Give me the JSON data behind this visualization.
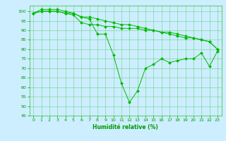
{
  "background_color": "#cceeff",
  "grid_color": "#33bb33",
  "line_color": "#00bb00",
  "marker_color": "#00bb00",
  "xlabel": "Humidité relative (%)",
  "xlabel_color": "#009900",
  "tick_color": "#009900",
  "ylim": [
    45,
    103
  ],
  "xlim": [
    -0.5,
    23.5
  ],
  "yticks": [
    45,
    50,
    55,
    60,
    65,
    70,
    75,
    80,
    85,
    90,
    95,
    100
  ],
  "xticks": [
    0,
    1,
    2,
    3,
    4,
    5,
    6,
    7,
    8,
    9,
    10,
    11,
    12,
    13,
    14,
    15,
    16,
    17,
    18,
    19,
    20,
    21,
    22,
    23
  ],
  "series": [
    {
      "x": [
        0,
        1,
        2,
        3,
        4,
        5,
        6,
        7,
        8,
        9,
        10,
        11,
        12,
        13,
        14,
        15,
        16,
        17,
        18,
        19,
        20,
        21,
        22,
        23
      ],
      "y": [
        99,
        101,
        101,
        101,
        100,
        99,
        97,
        96,
        88,
        88,
        77,
        62,
        52,
        58,
        70,
        72,
        75,
        73,
        74,
        75,
        75,
        78,
        71,
        79
      ]
    },
    {
      "x": [
        0,
        1,
        2,
        3,
        4,
        5,
        6,
        7,
        8,
        9,
        10,
        11,
        12,
        13,
        14,
        15,
        16,
        17,
        18,
        19,
        20,
        21,
        22,
        23
      ],
      "y": [
        99,
        100,
        100,
        100,
        99,
        98,
        94,
        93,
        93,
        92,
        92,
        91,
        91,
        91,
        90,
        90,
        89,
        88,
        87,
        86,
        86,
        85,
        84,
        80
      ]
    },
    {
      "x": [
        0,
        1,
        2,
        3,
        4,
        5,
        6,
        7,
        8,
        9,
        10,
        11,
        12,
        13,
        14,
        15,
        16,
        17,
        18,
        19,
        20,
        21,
        22,
        23
      ],
      "y": [
        99,
        100,
        100,
        100,
        99,
        99,
        97,
        97,
        96,
        95,
        94,
        93,
        93,
        92,
        91,
        90,
        89,
        89,
        88,
        87,
        86,
        85,
        84,
        80
      ]
    }
  ]
}
